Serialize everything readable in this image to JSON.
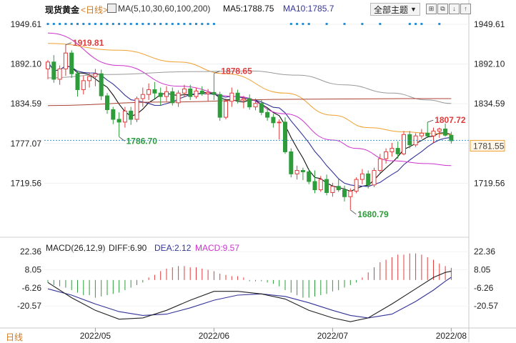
{
  "header": {
    "instrument": "现货黄金",
    "period_link": "<日线>",
    "ma_prefix": "MA(5,10,30,60,100,200)",
    "ma5": "MA5:1788.75",
    "ma10": "MA10:1785.7",
    "theme_button": "全部主题",
    "period_corner": "日线"
  },
  "colors": {
    "bull": "#e03c3c",
    "bear": "#2e9c3a",
    "ma5": "#111111",
    "ma10": "#333399",
    "ma30": "#cc33cc",
    "ma60": "#f0a030",
    "ma100": "#999999",
    "ma200": "#aa4433",
    "price_line": "#3a99c8",
    "macd_diff": "#222222",
    "macd_dea": "#333399",
    "dot_markers": "#2a8fd0"
  },
  "chart_data": [
    {
      "type": "candlestick",
      "title": "",
      "ylim": [
        1662,
        1962
      ],
      "yticks": [
        1949.61,
        1892.1,
        1834.59,
        1777.07,
        1719.56
      ],
      "ytick_labels": [
        "1949.61",
        "1892.10",
        "1834.59",
        "1777.07",
        "1719.56"
      ],
      "x_labels": [
        "2022/05",
        "2022/06",
        "2022/07",
        "2022/08"
      ],
      "x_label_index": [
        8,
        28,
        48,
        68
      ],
      "candles": [
        {
          "o": 1885,
          "h": 1898,
          "l": 1870,
          "c": 1895
        },
        {
          "o": 1895,
          "h": 1905,
          "l": 1865,
          "c": 1870
        },
        {
          "o": 1870,
          "h": 1890,
          "l": 1862,
          "c": 1885
        },
        {
          "o": 1885,
          "h": 1920,
          "l": 1875,
          "c": 1908
        },
        {
          "o": 1908,
          "h": 1912,
          "l": 1872,
          "c": 1878
        },
        {
          "o": 1878,
          "h": 1882,
          "l": 1845,
          "c": 1855
        },
        {
          "o": 1855,
          "h": 1875,
          "l": 1848,
          "c": 1868
        },
        {
          "o": 1868,
          "h": 1880,
          "l": 1858,
          "c": 1874
        },
        {
          "o": 1874,
          "h": 1885,
          "l": 1860,
          "c": 1878
        },
        {
          "o": 1878,
          "h": 1884,
          "l": 1840,
          "c": 1846
        },
        {
          "o": 1846,
          "h": 1850,
          "l": 1820,
          "c": 1826
        },
        {
          "o": 1826,
          "h": 1830,
          "l": 1805,
          "c": 1812
        },
        {
          "o": 1812,
          "h": 1822,
          "l": 1787,
          "c": 1808
        },
        {
          "o": 1808,
          "h": 1830,
          "l": 1800,
          "c": 1824
        },
        {
          "o": 1824,
          "h": 1830,
          "l": 1804,
          "c": 1812
        },
        {
          "o": 1812,
          "h": 1845,
          "l": 1808,
          "c": 1842
        },
        {
          "o": 1842,
          "h": 1858,
          "l": 1830,
          "c": 1848
        },
        {
          "o": 1848,
          "h": 1864,
          "l": 1840,
          "c": 1855
        },
        {
          "o": 1855,
          "h": 1866,
          "l": 1842,
          "c": 1850
        },
        {
          "o": 1850,
          "h": 1858,
          "l": 1832,
          "c": 1845
        },
        {
          "o": 1845,
          "h": 1860,
          "l": 1838,
          "c": 1852
        },
        {
          "o": 1852,
          "h": 1858,
          "l": 1832,
          "c": 1836
        },
        {
          "o": 1836,
          "h": 1854,
          "l": 1830,
          "c": 1850
        },
        {
          "o": 1850,
          "h": 1862,
          "l": 1844,
          "c": 1856
        },
        {
          "o": 1856,
          "h": 1862,
          "l": 1840,
          "c": 1845
        },
        {
          "o": 1845,
          "h": 1858,
          "l": 1842,
          "c": 1853
        },
        {
          "o": 1853,
          "h": 1860,
          "l": 1846,
          "c": 1849
        },
        {
          "o": 1849,
          "h": 1856,
          "l": 1838,
          "c": 1851
        },
        {
          "o": 1851,
          "h": 1878,
          "l": 1840,
          "c": 1848
        },
        {
          "o": 1848,
          "h": 1852,
          "l": 1810,
          "c": 1815
        },
        {
          "o": 1815,
          "h": 1842,
          "l": 1812,
          "c": 1838
        },
        {
          "o": 1838,
          "h": 1858,
          "l": 1830,
          "c": 1850
        },
        {
          "o": 1850,
          "h": 1855,
          "l": 1835,
          "c": 1840
        },
        {
          "o": 1840,
          "h": 1846,
          "l": 1828,
          "c": 1842
        },
        {
          "o": 1842,
          "h": 1848,
          "l": 1826,
          "c": 1830
        },
        {
          "o": 1830,
          "h": 1842,
          "l": 1825,
          "c": 1835
        },
        {
          "o": 1835,
          "h": 1840,
          "l": 1818,
          "c": 1822
        },
        {
          "o": 1822,
          "h": 1828,
          "l": 1810,
          "c": 1815
        },
        {
          "o": 1815,
          "h": 1820,
          "l": 1800,
          "c": 1807
        },
        {
          "o": 1807,
          "h": 1812,
          "l": 1783,
          "c": 1808
        },
        {
          "o": 1808,
          "h": 1815,
          "l": 1762,
          "c": 1765
        },
        {
          "o": 1765,
          "h": 1770,
          "l": 1728,
          "c": 1733
        },
        {
          "o": 1733,
          "h": 1745,
          "l": 1725,
          "c": 1738
        },
        {
          "o": 1738,
          "h": 1742,
          "l": 1724,
          "c": 1736
        },
        {
          "o": 1736,
          "h": 1740,
          "l": 1718,
          "c": 1722
        },
        {
          "o": 1722,
          "h": 1738,
          "l": 1705,
          "c": 1710
        },
        {
          "o": 1710,
          "h": 1730,
          "l": 1707,
          "c": 1725
        },
        {
          "o": 1725,
          "h": 1732,
          "l": 1702,
          "c": 1706
        },
        {
          "o": 1706,
          "h": 1720,
          "l": 1700,
          "c": 1715
        },
        {
          "o": 1715,
          "h": 1725,
          "l": 1707,
          "c": 1710
        },
        {
          "o": 1710,
          "h": 1716,
          "l": 1693,
          "c": 1700
        },
        {
          "o": 1700,
          "h": 1712,
          "l": 1681,
          "c": 1708
        },
        {
          "o": 1708,
          "h": 1728,
          "l": 1705,
          "c": 1725
        },
        {
          "o": 1725,
          "h": 1740,
          "l": 1718,
          "c": 1733
        },
        {
          "o": 1733,
          "h": 1738,
          "l": 1712,
          "c": 1717
        },
        {
          "o": 1717,
          "h": 1742,
          "l": 1714,
          "c": 1738
        },
        {
          "o": 1738,
          "h": 1762,
          "l": 1735,
          "c": 1755
        },
        {
          "o": 1755,
          "h": 1770,
          "l": 1748,
          "c": 1765
        },
        {
          "o": 1765,
          "h": 1778,
          "l": 1758,
          "c": 1770
        },
        {
          "o": 1770,
          "h": 1780,
          "l": 1755,
          "c": 1762
        },
        {
          "o": 1762,
          "h": 1795,
          "l": 1760,
          "c": 1790
        },
        {
          "o": 1790,
          "h": 1795,
          "l": 1770,
          "c": 1775
        },
        {
          "o": 1775,
          "h": 1792,
          "l": 1772,
          "c": 1788
        },
        {
          "o": 1788,
          "h": 1798,
          "l": 1784,
          "c": 1792
        },
        {
          "o": 1792,
          "h": 1808,
          "l": 1785,
          "c": 1788
        },
        {
          "o": 1788,
          "h": 1800,
          "l": 1778,
          "c": 1795
        },
        {
          "o": 1795,
          "h": 1800,
          "l": 1785,
          "c": 1798
        },
        {
          "o": 1798,
          "h": 1806,
          "l": 1787,
          "c": 1789
        },
        {
          "o": 1789,
          "h": 1794,
          "l": 1777,
          "c": 1781
        }
      ],
      "extremes": [
        {
          "label": "1919.81",
          "index": 3,
          "value": 1919.81,
          "kind": "high"
        },
        {
          "label": "1786.70",
          "index": 12,
          "value": 1786.7,
          "kind": "low"
        },
        {
          "label": "1878.65",
          "index": 28,
          "value": 1878.65,
          "kind": "high"
        },
        {
          "label": "1680.79",
          "index": 51,
          "value": 1680.79,
          "kind": "low"
        },
        {
          "label": "1807.72",
          "index": 64,
          "value": 1807.72,
          "kind": "high"
        }
      ],
      "last_price": {
        "value": 1781.55,
        "label": "1781.55"
      },
      "moving_averages": [
        {
          "name": "MA5",
          "color_key": "ma5",
          "period": 5
        },
        {
          "name": "MA10",
          "color_key": "ma10",
          "period": 10
        },
        {
          "name": "MA30",
          "color_key": "ma30",
          "points": [
            [
              0,
              1937
            ],
            [
              12,
              1890
            ],
            [
              22,
              1860
            ],
            [
              32,
              1845
            ],
            [
              40,
              1820
            ],
            [
              48,
              1782
            ],
            [
              52,
              1770
            ],
            [
              58,
              1752
            ],
            [
              64,
              1748
            ],
            [
              68,
              1745
            ]
          ]
        },
        {
          "name": "MA60",
          "color_key": "ma60",
          "points": [
            [
              0,
              1922
            ],
            [
              12,
              1912
            ],
            [
              22,
              1895
            ],
            [
              30,
              1878
            ],
            [
              40,
              1850
            ],
            [
              48,
              1818
            ],
            [
              54,
              1800
            ],
            [
              60,
              1794
            ],
            [
              64,
              1792
            ],
            [
              68,
              1790
            ]
          ]
        },
        {
          "name": "MA100",
          "color_key": "ma100",
          "points": [
            [
              0,
              1872
            ],
            [
              10,
              1877
            ],
            [
              24,
              1881
            ],
            [
              34,
              1882
            ],
            [
              42,
              1876
            ],
            [
              50,
              1862
            ],
            [
              58,
              1850
            ],
            [
              64,
              1840
            ],
            [
              68,
              1835
            ]
          ]
        },
        {
          "name": "MA200",
          "color_key": "ma200",
          "points": [
            [
              0,
              1832
            ],
            [
              20,
              1837
            ],
            [
              40,
              1841
            ],
            [
              60,
              1842
            ],
            [
              68,
              1842
            ]
          ]
        }
      ],
      "marker_dots": {
        "left_range": [
          0,
          28
        ],
        "right_indices": [
          41,
          42,
          43,
          44,
          47,
          50,
          53,
          56,
          61,
          62,
          63,
          66
        ]
      }
    },
    {
      "type": "bar",
      "title": "MACD(26,12,9)",
      "legend": {
        "diff": "DIFF:6.90",
        "dea": "DEA:2.12",
        "macd": "MACD:9.57"
      },
      "ylim": [
        -34,
        27
      ],
      "yticks": [
        22.36,
        8.05,
        -6.26,
        -20.57
      ],
      "ytick_labels": [
        "22.36",
        "8.05",
        "-6.26",
        "-20.57"
      ],
      "diff": [
        {
          "i": 0,
          "v": -2
        },
        {
          "i": 4,
          "v": -14
        },
        {
          "i": 8,
          "v": -24
        },
        {
          "i": 12,
          "v": -31
        },
        {
          "i": 16,
          "v": -30
        },
        {
          "i": 20,
          "v": -24
        },
        {
          "i": 24,
          "v": -16
        },
        {
          "i": 28,
          "v": -9
        },
        {
          "i": 32,
          "v": -9
        },
        {
          "i": 36,
          "v": -11
        },
        {
          "i": 40,
          "v": -15
        },
        {
          "i": 44,
          "v": -24
        },
        {
          "i": 48,
          "v": -30
        },
        {
          "i": 51,
          "v": -33
        },
        {
          "i": 54,
          "v": -30
        },
        {
          "i": 58,
          "v": -19
        },
        {
          "i": 62,
          "v": -7
        },
        {
          "i": 65,
          "v": 2
        },
        {
          "i": 67,
          "v": 6
        },
        {
          "i": 68,
          "v": 6.9
        }
      ],
      "dea": [
        {
          "i": 0,
          "v": -7
        },
        {
          "i": 4,
          "v": -12
        },
        {
          "i": 8,
          "v": -19
        },
        {
          "i": 12,
          "v": -25
        },
        {
          "i": 16,
          "v": -28
        },
        {
          "i": 20,
          "v": -27
        },
        {
          "i": 24,
          "v": -22
        },
        {
          "i": 28,
          "v": -16
        },
        {
          "i": 32,
          "v": -12
        },
        {
          "i": 36,
          "v": -11
        },
        {
          "i": 40,
          "v": -13
        },
        {
          "i": 44,
          "v": -18
        },
        {
          "i": 48,
          "v": -24
        },
        {
          "i": 51,
          "v": -28
        },
        {
          "i": 54,
          "v": -30
        },
        {
          "i": 58,
          "v": -27
        },
        {
          "i": 62,
          "v": -17
        },
        {
          "i": 65,
          "v": -8
        },
        {
          "i": 67,
          "v": -1
        },
        {
          "i": 68,
          "v": 2.12
        }
      ],
      "hist": [
        {
          "i": 0,
          "v": -2
        },
        {
          "i": 1,
          "v": -4
        },
        {
          "i": 2,
          "v": -5
        },
        {
          "i": 3,
          "v": -6
        },
        {
          "i": 4,
          "v": -8
        },
        {
          "i": 5,
          "v": -10
        },
        {
          "i": 6,
          "v": -12
        },
        {
          "i": 7,
          "v": -12
        },
        {
          "i": 8,
          "v": -14
        },
        {
          "i": 9,
          "v": -13
        },
        {
          "i": 10,
          "v": -12
        },
        {
          "i": 11,
          "v": -11
        },
        {
          "i": 12,
          "v": -10
        },
        {
          "i": 13,
          "v": -8
        },
        {
          "i": 14,
          "v": -6
        },
        {
          "i": 15,
          "v": -4
        },
        {
          "i": 16,
          "v": -2
        },
        {
          "i": 17,
          "v": 2
        },
        {
          "i": 18,
          "v": 4
        },
        {
          "i": 19,
          "v": 7
        },
        {
          "i": 20,
          "v": 9
        },
        {
          "i": 21,
          "v": 10
        },
        {
          "i": 22,
          "v": 11
        },
        {
          "i": 23,
          "v": 11
        },
        {
          "i": 24,
          "v": 10
        },
        {
          "i": 25,
          "v": 10
        },
        {
          "i": 26,
          "v": 9
        },
        {
          "i": 27,
          "v": 8
        },
        {
          "i": 28,
          "v": 7
        },
        {
          "i": 29,
          "v": 5
        },
        {
          "i": 30,
          "v": 4
        },
        {
          "i": 31,
          "v": 3
        },
        {
          "i": 32,
          "v": 3
        },
        {
          "i": 33,
          "v": 2
        },
        {
          "i": 34,
          "v": -1
        },
        {
          "i": 35,
          "v": -1
        },
        {
          "i": 36,
          "v": -1
        },
        {
          "i": 37,
          "v": -2
        },
        {
          "i": 38,
          "v": -3
        },
        {
          "i": 39,
          "v": -5
        },
        {
          "i": 40,
          "v": -8
        },
        {
          "i": 41,
          "v": -10
        },
        {
          "i": 42,
          "v": -12
        },
        {
          "i": 43,
          "v": -14
        },
        {
          "i": 44,
          "v": -14
        },
        {
          "i": 45,
          "v": -13
        },
        {
          "i": 46,
          "v": -12
        },
        {
          "i": 47,
          "v": -11
        },
        {
          "i": 48,
          "v": -9
        },
        {
          "i": 49,
          "v": -8
        },
        {
          "i": 50,
          "v": -6
        },
        {
          "i": 51,
          "v": -4
        },
        {
          "i": 52,
          "v": -2
        },
        {
          "i": 53,
          "v": 2
        },
        {
          "i": 54,
          "v": 6
        },
        {
          "i": 55,
          "v": 10
        },
        {
          "i": 56,
          "v": 14
        },
        {
          "i": 57,
          "v": 16
        },
        {
          "i": 58,
          "v": 18
        },
        {
          "i": 59,
          "v": 20
        },
        {
          "i": 60,
          "v": 20
        },
        {
          "i": 61,
          "v": 21
        },
        {
          "i": 62,
          "v": 21
        },
        {
          "i": 63,
          "v": 20
        },
        {
          "i": 64,
          "v": 18
        },
        {
          "i": 65,
          "v": 16
        },
        {
          "i": 66,
          "v": 13
        },
        {
          "i": 67,
          "v": 11
        },
        {
          "i": 68,
          "v": 9.57
        }
      ]
    }
  ]
}
